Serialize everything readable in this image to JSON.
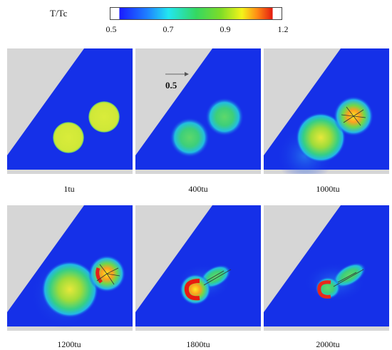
{
  "colorbar": {
    "title": "T/Tc",
    "ticks": [
      "0.5",
      "0.7",
      "0.9",
      "1.2"
    ]
  },
  "reference_vector_label": "0.5",
  "panels": [
    {
      "caption": "1tu"
    },
    {
      "caption": "400tu"
    },
    {
      "caption": "1000tu"
    },
    {
      "caption": "1200tu"
    },
    {
      "caption": "1800tu"
    },
    {
      "caption": "2000tu"
    }
  ],
  "colors": {
    "domain_blue": "#1530e8",
    "background_gray": "#d6d6d6"
  }
}
